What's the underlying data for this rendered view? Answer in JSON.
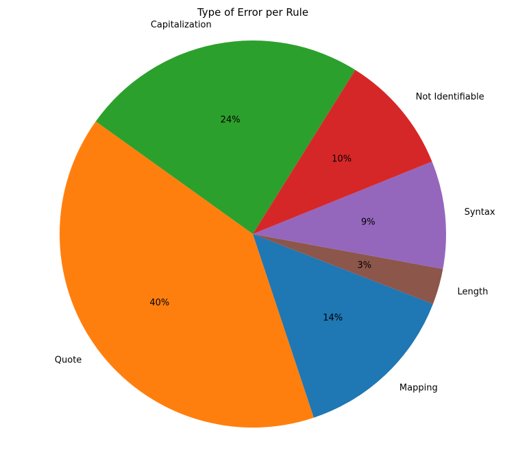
{
  "chart_data": {
    "type": "pie",
    "title": "Type of Error per Rule",
    "slices": [
      {
        "label": "Capitalization",
        "value": 24,
        "pct_label": "24%",
        "color": "#2ca02c"
      },
      {
        "label": "Quote",
        "value": 40,
        "pct_label": "40%",
        "color": "#ff7f0e"
      },
      {
        "label": "Mapping",
        "value": 14,
        "pct_label": "14%",
        "color": "#1f77b4"
      },
      {
        "label": "Length",
        "value": 3,
        "pct_label": "3%",
        "color": "#8c564b"
      },
      {
        "label": "Syntax",
        "value": 9,
        "pct_label": "9%",
        "color": "#9467bd"
      },
      {
        "label": "Not Identifiable",
        "value": 10,
        "pct_label": "10%",
        "color": "#d62728"
      }
    ]
  }
}
